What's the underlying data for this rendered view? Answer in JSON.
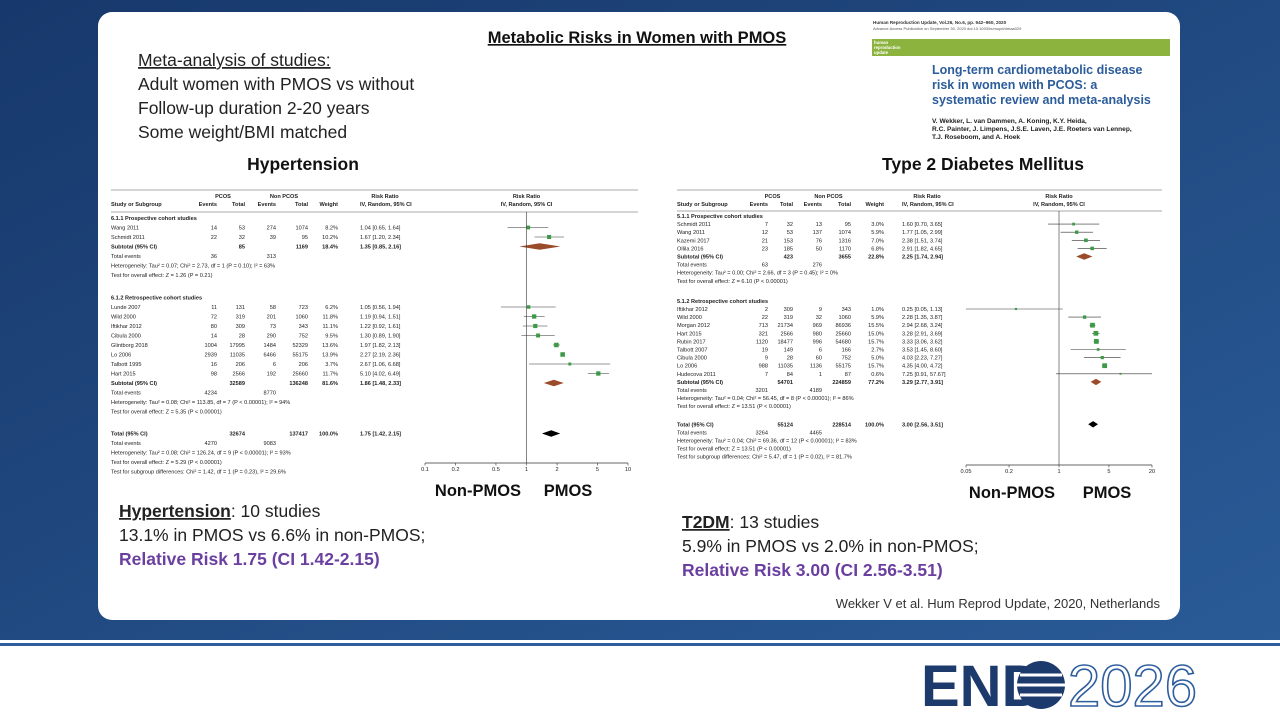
{
  "slide": {
    "title": "Metabolic Risks in Women with PMOS",
    "intro": [
      "Meta-analysis of studies:",
      "Adult women with PMOS vs without",
      "Follow-up duration 2-20 years",
      "Some weight/BMI matched"
    ],
    "journal": {
      "header": "Human Reproduction Update, Vol.26, No.6, pp. 942–960, 2020",
      "subheader": "Advance Access Publication on September 30, 2020 doi:10.1093/humupd/dmaa029",
      "band": [
        "human",
        "reproduction",
        "update"
      ],
      "title": [
        "Long-term cardiometabolic disease",
        "risk in women with PCOS: a",
        "systematic review and meta-analysis"
      ],
      "authors": [
        "V. Wekker, L. van Dammen, A. Koning, K.Y. Heida,",
        "R.C. Painter, J. Limpens, J.S.E. Laven, J.E. Roeters van Lennep,",
        "T.J. Roseboom, and A. Hoek"
      ]
    },
    "citation": "Wekker V et al. Hum Reprod Update, 2020, Netherlands",
    "logo": {
      "left": "END",
      "right": "2026"
    }
  },
  "plots": [
    {
      "title": "Hypertension",
      "left_label": "Non-PMOS",
      "right_label": "PMOS",
      "summary": {
        "term": "Hypertension",
        "rest": ": 10 studies",
        "line2": "13.1% in PMOS vs 6.6% in non-PMOS;",
        "line3": "Relative Risk 1.75 (CI 1.42-2.15)"
      },
      "head1": [
        "PCOS",
        "Non PCOS",
        "Risk Ratio",
        "Risk Ratio"
      ],
      "head2": [
        "Study or Subgroup",
        "Events",
        "Total",
        "Events",
        "Total",
        "Weight",
        "IV, Random, 95% CI",
        "IV, Random, 95% CI"
      ],
      "xlim": [
        0.1,
        10
      ],
      "xticks": [
        0.1,
        0.2,
        0.5,
        1,
        2,
        5,
        10
      ],
      "log": true,
      "null_line": 1,
      "rows": [
        {
          "kind": "section",
          "text": "6.1.1 Prospective cohort studies"
        },
        {
          "kind": "study",
          "text": "Wang 2011",
          "cells": [
            "14",
            "53",
            "274",
            "1074",
            "8.2%",
            "1.04 [0.65, 1.64]"
          ],
          "rr": 1.04,
          "ci": [
            0.65,
            1.64
          ],
          "weight": 8.2
        },
        {
          "kind": "study",
          "text": "Schmidt 2011",
          "cells": [
            "22",
            "32",
            "39",
            "95",
            "10.2%",
            "1.67 [1.20, 2.34]"
          ],
          "rr": 1.67,
          "ci": [
            1.2,
            2.34
          ],
          "weight": 10.2
        },
        {
          "kind": "subtotal",
          "text": "Subtotal (95% CI)",
          "cells": [
            null,
            "85",
            null,
            "1169",
            "18.4%",
            "1.35 [0.85, 2.16]"
          ],
          "rr": 1.35,
          "ci": [
            0.85,
            2.16
          ]
        },
        {
          "kind": "note",
          "text": "Total events",
          "cells": [
            "36",
            null,
            "313",
            null,
            null,
            null
          ]
        },
        {
          "kind": "note",
          "text": "Heterogeneity: Tau² = 0.07; Chi² = 2.73, df = 1 (P = 0.10); I² = 63%"
        },
        {
          "kind": "note",
          "text": "Test for overall effect: Z = 1.26 (P = 0.21)"
        },
        {
          "kind": "section",
          "text": "6.1.2 Retrospective cohort studies"
        },
        {
          "kind": "study",
          "text": "Lunde 2007",
          "cells": [
            "11",
            "131",
            "58",
            "723",
            "6.2%",
            "1.05 [0.56, 1.94]"
          ],
          "rr": 1.05,
          "ci": [
            0.56,
            1.94
          ],
          "weight": 6.2
        },
        {
          "kind": "study",
          "text": "Wild 2000",
          "cells": [
            "72",
            "319",
            "201",
            "1060",
            "11.8%",
            "1.19 [0.94, 1.51]"
          ],
          "rr": 1.19,
          "ci": [
            0.94,
            1.51
          ],
          "weight": 11.8
        },
        {
          "kind": "study",
          "text": "Iftikhar 2012",
          "cells": [
            "80",
            "309",
            "73",
            "343",
            "11.1%",
            "1.22 [0.92, 1.61]"
          ],
          "rr": 1.22,
          "ci": [
            0.92,
            1.61
          ],
          "weight": 11.1
        },
        {
          "kind": "study",
          "text": "Cibula 2000",
          "cells": [
            "14",
            "28",
            "290",
            "752",
            "9.5%",
            "1.30 [0.89, 1.90]"
          ],
          "rr": 1.3,
          "ci": [
            0.89,
            1.9
          ],
          "weight": 9.5
        },
        {
          "kind": "study",
          "text": "Glintborg 2018",
          "cells": [
            "1004",
            "17995",
            "1484",
            "52329",
            "13.6%",
            "1.97 [1.82, 2.13]"
          ],
          "rr": 1.97,
          "ci": [
            1.82,
            2.13
          ],
          "weight": 13.6
        },
        {
          "kind": "study",
          "text": "Lo 2006",
          "cells": [
            "2939",
            "11035",
            "6466",
            "55175",
            "13.9%",
            "2.27 [2.19, 2.36]"
          ],
          "rr": 2.27,
          "ci": [
            2.19,
            2.36
          ],
          "weight": 13.9
        },
        {
          "kind": "study",
          "text": "Talbott 1995",
          "cells": [
            "16",
            "206",
            "6",
            "206",
            "3.7%",
            "2.67 [1.06, 6.68]"
          ],
          "rr": 2.67,
          "ci": [
            1.06,
            6.68
          ],
          "weight": 3.7
        },
        {
          "kind": "study",
          "text": "Hart 2015",
          "cells": [
            "98",
            "2566",
            "192",
            "25660",
            "11.7%",
            "5.10 [4.02, 6.49]"
          ],
          "rr": 5.1,
          "ci": [
            4.02,
            6.49
          ],
          "weight": 11.7
        },
        {
          "kind": "subtotal",
          "text": "Subtotal (95% CI)",
          "cells": [
            null,
            "32589",
            null,
            "136248",
            "81.6%",
            "1.86 [1.48, 2.33]"
          ],
          "rr": 1.86,
          "ci": [
            1.48,
            2.33
          ]
        },
        {
          "kind": "note",
          "text": "Total events",
          "cells": [
            "4234",
            null,
            "8770",
            null,
            null,
            null
          ]
        },
        {
          "kind": "note",
          "text": "Heterogeneity: Tau² = 0.08; Chi² = 113.85, df = 7 (P < 0.00001); I² = 94%"
        },
        {
          "kind": "note",
          "text": "Test for overall effect: Z = 5.35 (P < 0.00001)"
        },
        {
          "kind": "total",
          "text": "Total (95% CI)",
          "cells": [
            null,
            "32674",
            null,
            "137417",
            "100.0%",
            "1.75 [1.42, 2.15]"
          ],
          "rr": 1.75,
          "ci": [
            1.42,
            2.15
          ]
        },
        {
          "kind": "note",
          "text": "Total events",
          "cells": [
            "4270",
            null,
            "9083",
            null,
            null,
            null
          ]
        },
        {
          "kind": "note",
          "text": "Heterogeneity: Tau² = 0.08; Chi² = 126.24, df = 9 (P < 0.00001); I² = 93%"
        },
        {
          "kind": "note",
          "text": "Test for overall effect: Z = 5.29 (P < 0.00001)"
        },
        {
          "kind": "note",
          "text": "Test for subgroup differences: Chi² = 1.42, df = 1 (P = 0.23), I² = 29.6%"
        }
      ]
    },
    {
      "title": "Type 2 Diabetes Mellitus",
      "left_label": "Non-PMOS",
      "right_label": "PMOS",
      "summary": {
        "term": "T2DM",
        "rest": ": 13 studies",
        "line2": "5.9% in PMOS vs 2.0% in non-PMOS;",
        "line3": "Relative Risk 3.00 (CI 2.56-3.51)"
      },
      "head1": [
        "PCOS",
        "Non PCOS",
        "Risk Ratio",
        "Risk Ratio"
      ],
      "head2": [
        "Study or Subgroup",
        "Events",
        "Total",
        "Events",
        "Total",
        "Weight",
        "IV, Random, 95% CI",
        "IV, Random, 95% CI"
      ],
      "xlim": [
        0.05,
        20
      ],
      "xticks": [
        0.05,
        0.2,
        1,
        5,
        20
      ],
      "log": true,
      "null_line": 1,
      "rows": [
        {
          "kind": "section",
          "text": "5.1.1 Prospective cohort studies"
        },
        {
          "kind": "study",
          "text": "Schmidt 2011",
          "cells": [
            "7",
            "32",
            "13",
            "95",
            "3.0%",
            "1.60 [0.70, 3.65]"
          ],
          "rr": 1.6,
          "ci": [
            0.7,
            3.65
          ],
          "weight": 3.0
        },
        {
          "kind": "study",
          "text": "Wang 2011",
          "cells": [
            "12",
            "53",
            "137",
            "1074",
            "5.9%",
            "1.77 [1.05, 2.99]"
          ],
          "rr": 1.77,
          "ci": [
            1.05,
            2.99
          ],
          "weight": 5.9
        },
        {
          "kind": "study",
          "text": "Kazemi 2017",
          "cells": [
            "21",
            "153",
            "76",
            "1316",
            "7.0%",
            "2.38 [1.51, 3.74]"
          ],
          "rr": 2.38,
          "ci": [
            1.51,
            3.74
          ],
          "weight": 7.0
        },
        {
          "kind": "study",
          "text": "Ollila 2016",
          "cells": [
            "23",
            "185",
            "50",
            "1170",
            "6.8%",
            "2.91 [1.82, 4.65]"
          ],
          "rr": 2.91,
          "ci": [
            1.82,
            4.65
          ],
          "weight": 6.8
        },
        {
          "kind": "subtotal",
          "text": "Subtotal (95% CI)",
          "cells": [
            null,
            "423",
            null,
            "3655",
            "22.8%",
            "2.25 [1.74, 2.94]"
          ],
          "rr": 2.25,
          "ci": [
            1.74,
            2.94
          ]
        },
        {
          "kind": "note",
          "text": "Total events",
          "cells": [
            "63",
            null,
            "276",
            null,
            null,
            null
          ]
        },
        {
          "kind": "note",
          "text": "Heterogeneity: Tau² = 0.00; Chi² = 2.66, df = 3 (P = 0.45); I² = 0%"
        },
        {
          "kind": "note",
          "text": "Test for overall effect: Z = 6.10 (P < 0.00001)"
        },
        {
          "kind": "section",
          "text": "5.1.2 Retrospective cohort studies"
        },
        {
          "kind": "study",
          "text": "Iftikhar 2012",
          "cells": [
            "2",
            "309",
            "9",
            "343",
            "1.0%",
            "0.25 [0.05, 1.13]"
          ],
          "rr": 0.25,
          "ci": [
            0.05,
            1.13
          ],
          "weight": 1.0
        },
        {
          "kind": "study",
          "text": "Wild 2000",
          "cells": [
            "22",
            "319",
            "32",
            "1060",
            "5.9%",
            "2.28 [1.35, 3.87]"
          ],
          "rr": 2.28,
          "ci": [
            1.35,
            3.87
          ],
          "weight": 5.9
        },
        {
          "kind": "study",
          "text": "Morgan 2012",
          "cells": [
            "713",
            "21734",
            "969",
            "86936",
            "15.5%",
            "2.94 [2.68, 3.24]"
          ],
          "rr": 2.94,
          "ci": [
            2.68,
            3.24
          ],
          "weight": 15.5
        },
        {
          "kind": "study",
          "text": "Hart 2015",
          "cells": [
            "321",
            "2566",
            "980",
            "25660",
            "15.0%",
            "3.28 [2.91, 3.69]"
          ],
          "rr": 3.28,
          "ci": [
            2.91,
            3.69
          ],
          "weight": 15.0
        },
        {
          "kind": "study",
          "text": "Rubin 2017",
          "cells": [
            "1120",
            "18477",
            "996",
            "54680",
            "15.7%",
            "3.33 [3.06, 3.62]"
          ],
          "rr": 3.33,
          "ci": [
            3.06,
            3.62
          ],
          "weight": 15.7
        },
        {
          "kind": "study",
          "text": "Talbott 2007",
          "cells": [
            "19",
            "149",
            "6",
            "166",
            "2.7%",
            "3.53 [1.45, 8.60]"
          ],
          "rr": 3.53,
          "ci": [
            1.45,
            8.6
          ],
          "weight": 2.7
        },
        {
          "kind": "study",
          "text": "Cibula 2000",
          "cells": [
            "9",
            "28",
            "60",
            "752",
            "5.0%",
            "4.03 [2.23, 7.27]"
          ],
          "rr": 4.03,
          "ci": [
            2.23,
            7.27
          ],
          "weight": 5.0
        },
        {
          "kind": "study",
          "text": "Lo 2006",
          "cells": [
            "988",
            "11035",
            "1136",
            "55175",
            "15.7%",
            "4.35 [4.00, 4.72]"
          ],
          "rr": 4.35,
          "ci": [
            4.0,
            4.72
          ],
          "weight": 15.7
        },
        {
          "kind": "study",
          "text": "Hudecova 2011",
          "cells": [
            "7",
            "84",
            "1",
            "87",
            "0.6%",
            "7.25 [0.91, 57.67]"
          ],
          "rr": 7.25,
          "ci": [
            0.91,
            57.67
          ],
          "weight": 0.6
        },
        {
          "kind": "subtotal",
          "text": "Subtotal (95% CI)",
          "cells": [
            null,
            "54701",
            null,
            "224859",
            "77.2%",
            "3.29 [2.77, 3.91]"
          ],
          "rr": 3.29,
          "ci": [
            2.77,
            3.91
          ]
        },
        {
          "kind": "note",
          "text": "Total events",
          "cells": [
            "3201",
            null,
            "4189",
            null,
            null,
            null
          ]
        },
        {
          "kind": "note",
          "text": "Heterogeneity: Tau² = 0.04; Chi² = 56.45, df = 8 (P < 0.00001); I² = 86%"
        },
        {
          "kind": "note",
          "text": "Test for overall effect: Z = 13.51 (P < 0.00001)"
        },
        {
          "kind": "total",
          "text": "Total (95% CI)",
          "cells": [
            null,
            "55124",
            null,
            "228514",
            "100.0%",
            "3.00 [2.56, 3.51]"
          ],
          "rr": 3.0,
          "ci": [
            2.56,
            3.51
          ]
        },
        {
          "kind": "note",
          "text": "Total events",
          "cells": [
            "3264",
            null,
            "4465",
            null,
            null,
            null
          ]
        },
        {
          "kind": "note",
          "text": "Heterogeneity: Tau² = 0.04; Chi² = 69.36, df = 12 (P < 0.00001); I² = 83%"
        },
        {
          "kind": "note",
          "text": "Test for overall effect: Z = 13.51 (P < 0.00001)"
        },
        {
          "kind": "note",
          "text": "Test for subgroup differences: Chi² = 5.47, df = 1 (P = 0.02), I² = 81.7%"
        }
      ]
    }
  ]
}
